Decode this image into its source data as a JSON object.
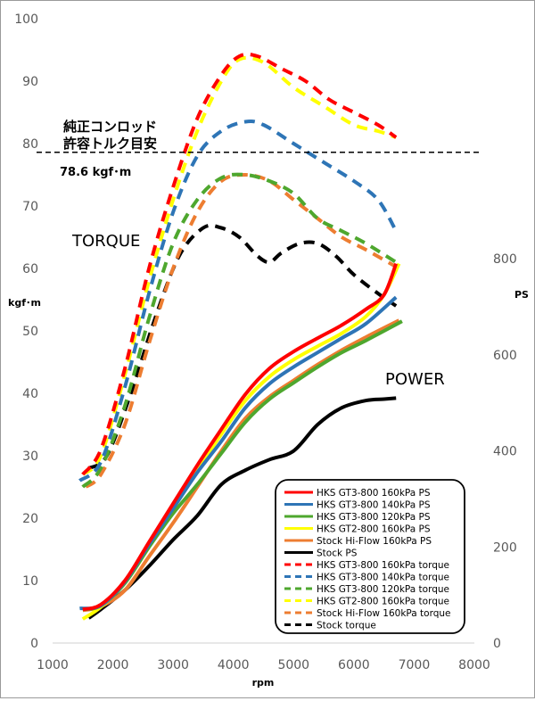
{
  "chart_data": {
    "type": "line",
    "xlabel": "rpm",
    "ylabel_left": "kgf･m",
    "ylabel_right": "PS",
    "xlim": [
      1000,
      8000
    ],
    "ylim_left": [
      0,
      100
    ],
    "ylim_right": [
      0,
      1300
    ],
    "x_ticks": [
      1000,
      2000,
      3000,
      4000,
      5000,
      6000,
      7000,
      8000
    ],
    "y_ticks_left": [
      0,
      10,
      20,
      30,
      40,
      50,
      60,
      70,
      80,
      90,
      100
    ],
    "y_ticks_right": [
      0,
      200,
      400,
      600,
      800
    ],
    "grid": "off",
    "annotations": {
      "torque_label": "TORQUE",
      "power_label": "POWER",
      "limit_line1": "純正コンロッド",
      "limit_line2": "許容トルク目安",
      "limit_value": "78.6 kgf･m",
      "limit_y": 78.6
    },
    "legend_position": "bottom-right",
    "series": [
      {
        "name": "HKS GT3-800 160kPa PS",
        "color": "#ff0000",
        "style": "solid",
        "axis": "right",
        "x": [
          1500,
          1800,
          2200,
          2600,
          3000,
          3400,
          3800,
          4200,
          4600,
          5000,
          5400,
          5800,
          6200,
          6500,
          6700
        ],
        "y": [
          70,
          80,
          130,
          210,
          290,
          370,
          445,
          518,
          572,
          607,
          635,
          662,
          695,
          725,
          790
        ]
      },
      {
        "name": "HKS GT3-800 140kPa PS",
        "color": "#2e75b6",
        "style": "solid",
        "axis": "right",
        "x": [
          1450,
          1800,
          2200,
          2600,
          3000,
          3400,
          3800,
          4200,
          4600,
          5000,
          5400,
          5800,
          6200,
          6700
        ],
        "y": [
          72,
          78,
          128,
          205,
          280,
          355,
          420,
          490,
          540,
          575,
          605,
          635,
          665,
          720
        ]
      },
      {
        "name": "HKS GT3-800 120kPa PS",
        "color": "#4ea72e",
        "style": "solid",
        "axis": "right",
        "x": [
          1500,
          1800,
          2200,
          2600,
          3000,
          3400,
          3800,
          4200,
          4600,
          5000,
          5400,
          5800,
          6200,
          6800
        ],
        "y": [
          70,
          78,
          125,
          200,
          270,
          330,
          395,
          460,
          508,
          542,
          575,
          605,
          630,
          670
        ]
      },
      {
        "name": "HKS GT2-800 160kPa PS",
        "color": "#ffff00",
        "style": "solid",
        "axis": "right",
        "x": [
          1500,
          1800,
          2200,
          2600,
          3000,
          3400,
          3800,
          4200,
          4600,
          5000,
          5400,
          5800,
          6200,
          6500,
          6750
        ],
        "y": [
          50,
          75,
          125,
          200,
          280,
          360,
          435,
          505,
          555,
          590,
          618,
          645,
          680,
          725,
          790
        ]
      },
      {
        "name": "Stock Hi-Flow 160kPa PS",
        "color": "#ed7d31",
        "style": "solid",
        "axis": "right",
        "x": [
          1500,
          1800,
          2200,
          2600,
          3000,
          3400,
          3800,
          4200,
          4600,
          5000,
          5400,
          5800,
          6200,
          6750
        ],
        "y": [
          68,
          76,
          110,
          180,
          250,
          325,
          400,
          468,
          513,
          547,
          580,
          610,
          637,
          672
        ]
      },
      {
        "name": "Stock PS",
        "color": "#000000",
        "style": "solid",
        "axis": "right",
        "x": [
          1600,
          1800,
          2200,
          2600,
          3000,
          3400,
          3800,
          4200,
          4600,
          5000,
          5400,
          5800,
          6200,
          6500,
          6700
        ],
        "y": [
          52,
          70,
          110,
          160,
          215,
          265,
          330,
          360,
          382,
          400,
          455,
          490,
          505,
          508,
          510
        ]
      },
      {
        "name": "HKS GT3-800 160kPa torque",
        "color": "#ff0000",
        "style": "dashed",
        "axis": "left",
        "x": [
          1500,
          1800,
          2200,
          2600,
          3000,
          3400,
          3800,
          4100,
          4400,
          4800,
          5200,
          5600,
          6000,
          6400,
          6700
        ],
        "y": [
          27,
          31,
          44,
          60,
          73,
          84,
          91,
          94,
          94,
          92,
          90,
          87,
          85,
          83,
          81
        ]
      },
      {
        "name": "HKS GT3-800 140kPa torque",
        "color": "#2e75b6",
        "style": "dashed",
        "axis": "left",
        "x": [
          1450,
          1800,
          2200,
          2600,
          3000,
          3400,
          3800,
          4200,
          4500,
          5000,
          5500,
          6000,
          6400,
          6700
        ],
        "y": [
          26,
          29,
          41,
          56,
          69,
          78,
          82,
          83.5,
          83,
          80,
          77,
          74,
          71,
          66
        ]
      },
      {
        "name": "HKS GT3-800 120kPa torque",
        "color": "#4ea72e",
        "style": "dashed",
        "axis": "left",
        "x": [
          1500,
          1800,
          2200,
          2600,
          3000,
          3400,
          3800,
          4200,
          4600,
          5000,
          5400,
          5800,
          6200,
          6700
        ],
        "y": [
          25,
          28,
          38,
          52,
          64,
          71,
          74.5,
          75,
          74,
          72,
          68,
          66,
          64,
          61
        ]
      },
      {
        "name": "HKS GT2-800 160kPa torque",
        "color": "#ffff00",
        "style": "dashed",
        "axis": "left",
        "x": [
          1500,
          1800,
          2200,
          2600,
          3000,
          3400,
          3800,
          4100,
          4500,
          5000,
          5500,
          6000,
          6400,
          6700
        ],
        "y": [
          27,
          30,
          43,
          58,
          71,
          82,
          90,
          93.5,
          93,
          89,
          86,
          83,
          82,
          81
        ]
      },
      {
        "name": "Stock Hi-Flow 160kPa torque",
        "color": "#ed7d31",
        "style": "dashed",
        "axis": "left",
        "x": [
          1550,
          1800,
          2200,
          2600,
          3000,
          3400,
          3800,
          4200,
          4600,
          5000,
          5400,
          5800,
          6200,
          6750
        ],
        "y": [
          25,
          27,
          35,
          48,
          60,
          69,
          74,
          75,
          74,
          71,
          68,
          65,
          63,
          60
        ]
      },
      {
        "name": "Stock torque",
        "color": "#000000",
        "style": "dashed",
        "axis": "left",
        "x": [
          1600,
          1900,
          2300,
          2700,
          3100,
          3500,
          3800,
          4100,
          4400,
          4600,
          4800,
          5100,
          5400,
          5700,
          6000,
          6400,
          6700
        ],
        "y": [
          28,
          30,
          40,
          52,
          62,
          66.5,
          66.5,
          65,
          62,
          61,
          62.5,
          64,
          64,
          62,
          59,
          56,
          54
        ]
      }
    ],
    "legend_entries": [
      {
        "name": "HKS GT3-800 160kPa PS",
        "color": "#ff0000",
        "style": "solid"
      },
      {
        "name": "HKS GT3-800 140kPa PS",
        "color": "#2e75b6",
        "style": "solid"
      },
      {
        "name": "HKS GT3-800 120kPa PS",
        "color": "#4ea72e",
        "style": "solid"
      },
      {
        "name": "HKS GT2-800 160kPa PS",
        "color": "#ffff00",
        "style": "solid"
      },
      {
        "name": "Stock Hi-Flow 160kPa PS",
        "color": "#ed7d31",
        "style": "solid"
      },
      {
        "name": "Stock                       PS",
        "color": "#000000",
        "style": "solid"
      },
      {
        "name": "HKS GT3-800 160kPa torque",
        "color": "#ff0000",
        "style": "dashed"
      },
      {
        "name": "HKS GT3-800 140kPa torque",
        "color": "#2e75b6",
        "style": "dashed"
      },
      {
        "name": "HKS GT3-800 120kPa torque",
        "color": "#4ea72e",
        "style": "dashed"
      },
      {
        "name": "HKS GT2-800 160kPa torque",
        "color": "#ffff00",
        "style": "dashed"
      },
      {
        "name": "Stock Hi-Flow 160kPa torque",
        "color": "#ed7d31",
        "style": "dashed"
      },
      {
        "name": "Stock                   torque",
        "color": "#000000",
        "style": "dashed"
      }
    ]
  }
}
